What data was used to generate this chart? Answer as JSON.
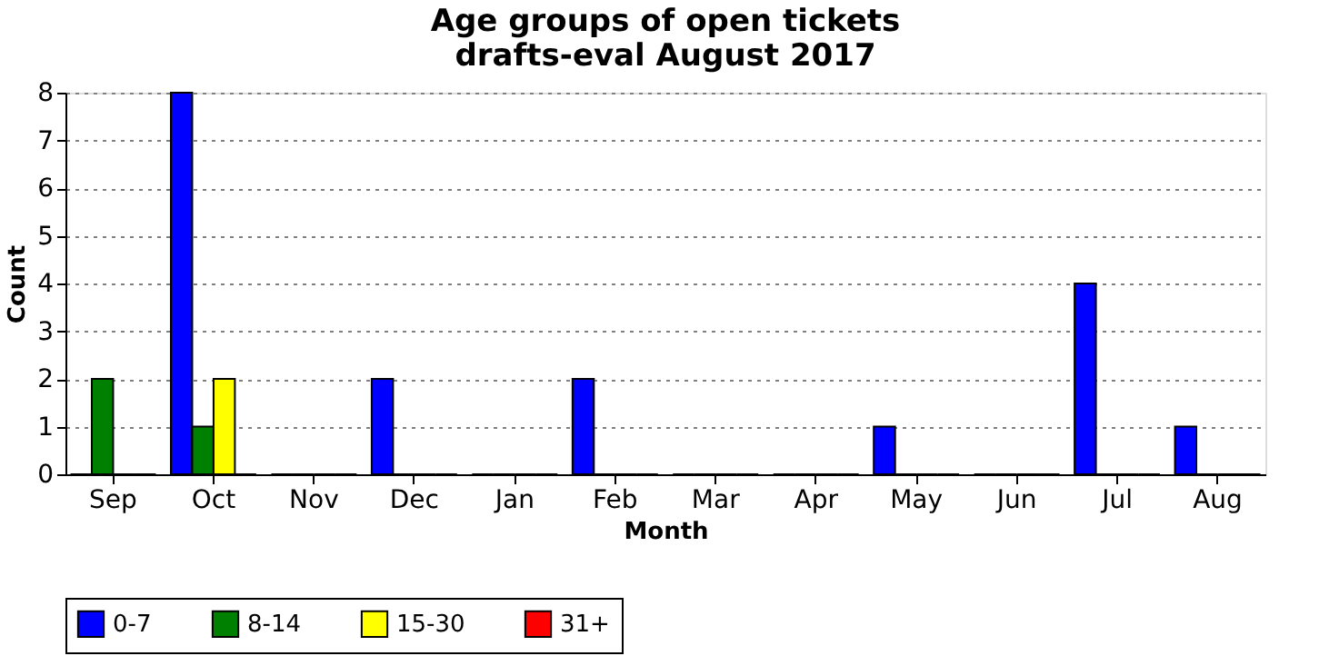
{
  "chart_data": {
    "type": "bar",
    "title": "Age groups of open tickets",
    "subtitle": "drafts-eval August 2017",
    "xlabel": "Month",
    "ylabel": "Count",
    "categories": [
      "Sep",
      "Oct",
      "Nov",
      "Dec",
      "Jan",
      "Feb",
      "Mar",
      "Apr",
      "May",
      "Jun",
      "Jul",
      "Aug"
    ],
    "series": [
      {
        "name": "0-7",
        "color": "#0000ff",
        "values": [
          0,
          8,
          0,
          2,
          0,
          2,
          0,
          0,
          1,
          0,
          4,
          1
        ]
      },
      {
        "name": "8-14",
        "color": "#008000",
        "values": [
          2,
          1,
          0,
          0,
          0,
          0,
          0,
          0,
          0,
          0,
          0,
          0
        ]
      },
      {
        "name": "15-30",
        "color": "#ffff00",
        "values": [
          0,
          2,
          0,
          0,
          0,
          0,
          0,
          0,
          0,
          0,
          0,
          0
        ]
      },
      {
        "name": "31+",
        "color": "#ff0000",
        "values": [
          0,
          0,
          0,
          0,
          0,
          0,
          0,
          0,
          0,
          0,
          0,
          0
        ]
      }
    ],
    "ylim": [
      0,
      8
    ],
    "yticks": [
      0,
      1,
      2,
      3,
      4,
      5,
      6,
      7,
      8
    ],
    "grid": "y",
    "legend": "bottom"
  }
}
